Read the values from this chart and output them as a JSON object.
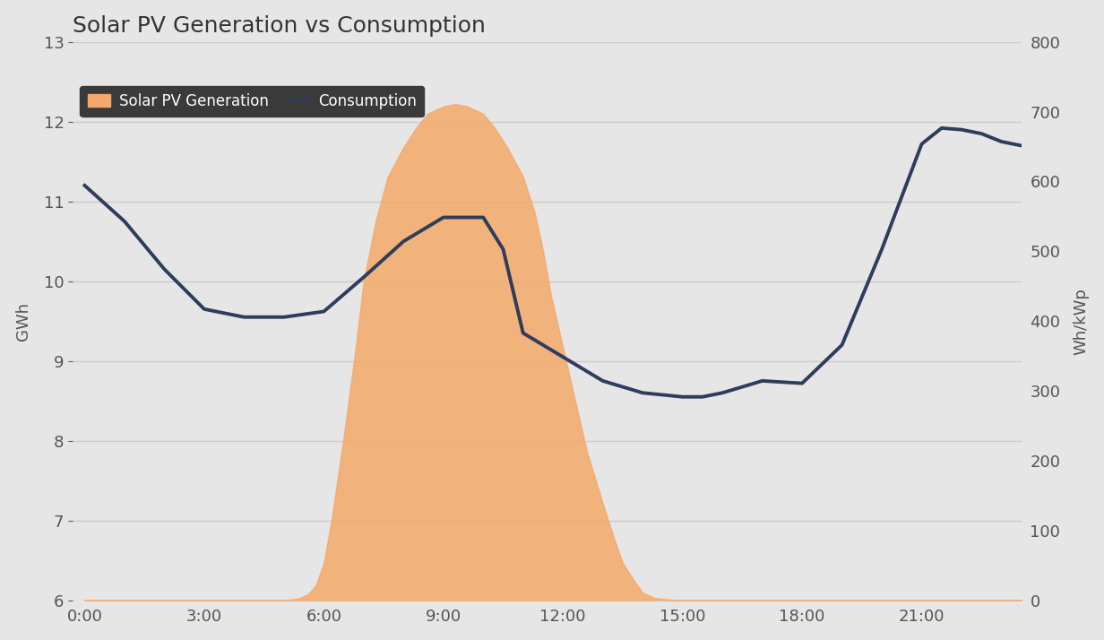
{
  "title": "Solar PV Generation vs Consumption",
  "background_color": "#e6e6e6",
  "plot_background_color": "#e6e6e6",
  "ylabel_left": "GWh",
  "ylabel_right": "Wh/kWp",
  "legend_labels": [
    "Solar PV Generation",
    "Consumption"
  ],
  "solar_color": "#f5a96a",
  "consumption_color": "#2d3d5c",
  "consumption_linewidth": 2.8,
  "x_ticks": [
    0,
    3,
    6,
    9,
    12,
    15,
    18,
    21
  ],
  "x_tick_labels": [
    "0:00",
    "3:00",
    "6:00",
    "9:00",
    "12:00",
    "15:00",
    "18:00",
    "21:00"
  ],
  "x_min": -0.3,
  "x_max": 23.5,
  "ylim_left": [
    6,
    13
  ],
  "ylim_right": [
    0,
    800
  ],
  "y_ticks_left": [
    6,
    7,
    8,
    9,
    10,
    11,
    12,
    13
  ],
  "y_ticks_right": [
    0,
    100,
    200,
    300,
    400,
    500,
    600,
    700,
    800
  ],
  "grid_color": "#cccccc",
  "title_fontsize": 18,
  "label_fontsize": 13,
  "tick_fontsize": 13,
  "solar_x": [
    0,
    0.5,
    1,
    1.5,
    2,
    2.5,
    3,
    3.5,
    4,
    4.5,
    5,
    5.2,
    5.4,
    5.6,
    5.8,
    6.0,
    6.2,
    6.5,
    6.8,
    7.0,
    7.3,
    7.6,
    8.0,
    8.3,
    8.6,
    9.0,
    9.3,
    9.6,
    10.0,
    10.3,
    10.6,
    11.0,
    11.3,
    11.5,
    11.7,
    12.0,
    12.3,
    12.6,
    13.0,
    13.3,
    13.5,
    13.8,
    14.0,
    14.3,
    14.6,
    15.0,
    15.3,
    15.6,
    16.0,
    16.4,
    16.8,
    17.2,
    17.6,
    18.0,
    18.5,
    19.0,
    19.5,
    20.0,
    20.5,
    21.0,
    21.5,
    22.0,
    22.5,
    23.0,
    23.5
  ],
  "solar_y_raw": [
    0,
    0,
    0,
    0,
    0,
    0,
    0,
    0,
    0,
    0,
    0,
    0.01,
    0.03,
    0.08,
    0.2,
    0.5,
    1.1,
    2.2,
    3.4,
    4.3,
    5.1,
    5.7,
    6.1,
    6.35,
    6.55,
    6.65,
    6.68,
    6.65,
    6.55,
    6.35,
    6.1,
    5.7,
    5.2,
    4.7,
    4.1,
    3.4,
    2.7,
    2.0,
    1.3,
    0.8,
    0.5,
    0.25,
    0.1,
    0.03,
    0.01,
    0,
    0,
    0,
    0,
    0,
    0,
    0,
    0,
    0,
    0,
    0,
    0,
    0,
    0,
    0,
    0,
    0,
    0,
    0,
    0
  ],
  "solar_peak_ghw": 12.22,
  "solar_baseline_ghw": 6.0,
  "consumption_x": [
    0,
    1,
    2,
    3,
    4,
    5,
    6,
    7,
    8,
    9,
    9.5,
    10,
    10.5,
    11,
    12,
    13,
    14,
    15,
    15.5,
    16,
    17,
    18,
    19,
    20,
    21,
    21.5,
    22,
    22.5,
    23,
    23.5
  ],
  "consumption_y": [
    11.2,
    10.75,
    10.15,
    9.65,
    9.55,
    9.55,
    9.62,
    10.05,
    10.5,
    10.8,
    10.8,
    10.8,
    10.4,
    9.35,
    9.05,
    8.75,
    8.6,
    8.55,
    8.55,
    8.6,
    8.75,
    8.72,
    9.2,
    10.4,
    11.72,
    11.92,
    11.9,
    11.85,
    11.75,
    11.7
  ]
}
